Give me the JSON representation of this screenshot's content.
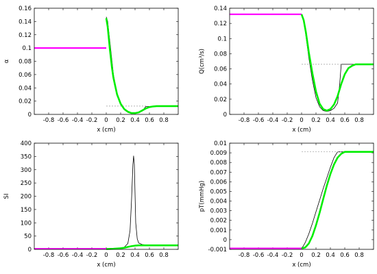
{
  "colors": {
    "magenta": "#ff00ff",
    "green": "#00ee00",
    "black": "#000000",
    "ref": "#999999"
  },
  "chart_data": [
    {
      "id": "alpha",
      "type": "line",
      "xlabel": "x (cm)",
      "ylabel": "α",
      "xlim": [
        -1.0,
        1.0
      ],
      "ylim": [
        0,
        0.16
      ],
      "xticks": [
        -0.8,
        -0.6,
        -0.4,
        -0.2,
        0,
        0.2,
        0.4,
        0.6,
        0.8
      ],
      "yticks": [
        0,
        0.02,
        0.04,
        0.06,
        0.08,
        0.1,
        0.12,
        0.14,
        0.16
      ],
      "xtick_labels": [
        "-0.8",
        "-0.6",
        "-0.4",
        "-0.2",
        "0",
        "0.2",
        "0.4",
        "0.6",
        "0.8"
      ],
      "ytick_labels": [
        "0",
        "0.02",
        "0.04",
        "0.06",
        "0.08",
        "0.1",
        "0.12",
        "0.14",
        "0.16"
      ],
      "series": [
        {
          "style": "magenta",
          "x": [
            -1.0,
            0.0
          ],
          "y": [
            0.1,
            0.1
          ]
        },
        {
          "style": "black",
          "x": [
            0.0,
            0.02,
            0.06,
            0.1,
            0.15,
            0.2,
            0.25,
            0.3,
            0.35,
            0.4,
            0.45,
            0.5,
            0.55,
            0.6,
            0.7,
            0.8,
            0.9,
            1.0
          ],
          "y": [
            0.147,
            0.14,
            0.1,
            0.06,
            0.032,
            0.016,
            0.007,
            0.003,
            0.002,
            0.002,
            0.003,
            0.005,
            0.012,
            0.012,
            0.012,
            0.012,
            0.012,
            0.012
          ]
        },
        {
          "style": "green",
          "x": [
            0.0,
            0.02,
            0.05,
            0.08,
            0.1,
            0.15,
            0.2,
            0.25,
            0.3,
            0.35,
            0.4,
            0.45,
            0.5,
            0.55,
            0.6,
            0.65,
            0.7,
            0.8,
            0.9,
            1.0
          ],
          "y": [
            0.145,
            0.132,
            0.098,
            0.07,
            0.055,
            0.03,
            0.016,
            0.008,
            0.004,
            0.002,
            0.002,
            0.003,
            0.006,
            0.009,
            0.011,
            0.012,
            0.0125,
            0.0125,
            0.0125,
            0.0125
          ]
        },
        {
          "style": "ref",
          "x": [
            0.0,
            0.56
          ],
          "y": [
            0.0125,
            0.0125
          ]
        }
      ]
    },
    {
      "id": "Q",
      "type": "line",
      "xlabel": "x (cm)",
      "ylabel": "Q(cm³/s)",
      "xlim": [
        -1.0,
        1.0
      ],
      "ylim": [
        0,
        0.14
      ],
      "xticks": [
        -0.8,
        -0.6,
        -0.4,
        -0.2,
        0,
        0.2,
        0.4,
        0.6,
        0.8
      ],
      "yticks": [
        0,
        0.02,
        0.04,
        0.06,
        0.08,
        0.1,
        0.12,
        0.14
      ],
      "xtick_labels": [
        "-0.8",
        "-0.6",
        "-0.4",
        "-0.2",
        "0",
        "0.2",
        "0.4",
        "0.6",
        "0.8"
      ],
      "ytick_labels": [
        "0",
        "0.02",
        "0.04",
        "0.06",
        "0.08",
        "0.1",
        "0.12",
        "0.14"
      ],
      "series": [
        {
          "style": "magenta",
          "x": [
            -1.0,
            0.0
          ],
          "y": [
            0.132,
            0.132
          ]
        },
        {
          "style": "black",
          "x": [
            0.0,
            0.02,
            0.05,
            0.1,
            0.15,
            0.2,
            0.25,
            0.3,
            0.35,
            0.4,
            0.45,
            0.5,
            0.53,
            0.55,
            0.6,
            0.8,
            1.0
          ],
          "y": [
            0.132,
            0.128,
            0.11,
            0.075,
            0.045,
            0.022,
            0.01,
            0.005,
            0.004,
            0.005,
            0.008,
            0.015,
            0.04,
            0.066,
            0.066,
            0.066,
            0.066
          ]
        },
        {
          "style": "green",
          "x": [
            0.0,
            0.03,
            0.06,
            0.1,
            0.15,
            0.2,
            0.25,
            0.3,
            0.35,
            0.4,
            0.45,
            0.5,
            0.55,
            0.6,
            0.65,
            0.7,
            0.75,
            0.8,
            0.9,
            1.0
          ],
          "y": [
            0.132,
            0.124,
            0.108,
            0.082,
            0.054,
            0.03,
            0.014,
            0.007,
            0.005,
            0.007,
            0.013,
            0.024,
            0.04,
            0.053,
            0.061,
            0.064,
            0.066,
            0.066,
            0.066,
            0.066
          ]
        },
        {
          "style": "ref",
          "x": [
            0.0,
            0.56
          ],
          "y": [
            0.066,
            0.066
          ]
        }
      ]
    },
    {
      "id": "SI",
      "type": "line",
      "xlabel": "x (cm)",
      "ylabel": "SI",
      "xlim": [
        -1.0,
        1.0
      ],
      "ylim": [
        0,
        400
      ],
      "xticks": [
        -0.8,
        -0.6,
        -0.4,
        -0.2,
        0,
        0.2,
        0.4,
        0.6,
        0.8
      ],
      "yticks": [
        0,
        50,
        100,
        150,
        200,
        250,
        300,
        350,
        400
      ],
      "xtick_labels": [
        "-0.8",
        "-0.6",
        "-0.4",
        "-0.2",
        "0",
        "0.2",
        "0.4",
        "0.6",
        "0.8"
      ],
      "ytick_labels": [
        "0",
        "50",
        "100",
        "150",
        "200",
        "250",
        "300",
        "350",
        "400"
      ],
      "series": [
        {
          "style": "magenta",
          "x": [
            -1.0,
            0.0
          ],
          "y": [
            2,
            2
          ]
        },
        {
          "style": "black",
          "x": [
            0.0,
            0.1,
            0.2,
            0.25,
            0.3,
            0.33,
            0.35,
            0.37,
            0.38,
            0.39,
            0.41,
            0.43,
            0.45,
            0.5,
            0.6,
            0.8,
            1.0
          ],
          "y": [
            1,
            2,
            4,
            8,
            22,
            70,
            180,
            320,
            352,
            320,
            100,
            40,
            24,
            18,
            15,
            14,
            14
          ]
        },
        {
          "style": "green",
          "x": [
            0.0,
            0.1,
            0.2,
            0.25,
            0.3,
            0.35,
            0.4,
            0.45,
            0.5,
            0.6,
            0.7,
            0.8,
            0.9,
            1.0
          ],
          "y": [
            1,
            2,
            4,
            6,
            9,
            12,
            14,
            15,
            15,
            15,
            15,
            15,
            15,
            15
          ]
        }
      ]
    },
    {
      "id": "pT",
      "type": "line",
      "xlabel": "x (cm)",
      "ylabel": "pT(mmHg)",
      "xlim": [
        -1.0,
        1.0
      ],
      "ylim": [
        -0.001,
        0.01
      ],
      "xticks": [
        -0.8,
        -0.6,
        -0.4,
        -0.2,
        0,
        0.2,
        0.4,
        0.6,
        0.8
      ],
      "yticks": [
        -0.001,
        0,
        0.001,
        0.002,
        0.003,
        0.004,
        0.005,
        0.006,
        0.007,
        0.008,
        0.009,
        0.01
      ],
      "xtick_labels": [
        "-0.8",
        "-0.6",
        "-0.4",
        "-0.2",
        "0",
        "0.2",
        "0.4",
        "0.6",
        "0.8"
      ],
      "ytick_labels": [
        "-0.001",
        "0",
        "0.001",
        "0.002",
        "0.003",
        "0.004",
        "0.005",
        "0.006",
        "0.007",
        "0.008",
        "0.009",
        "0.01"
      ],
      "series": [
        {
          "style": "magenta",
          "x": [
            -1.0,
            0.0
          ],
          "y": [
            -0.0009,
            -0.0009
          ]
        },
        {
          "style": "black",
          "x": [
            0.0,
            0.02,
            0.05,
            0.1,
            0.15,
            0.2,
            0.25,
            0.3,
            0.35,
            0.4,
            0.45,
            0.5,
            0.55,
            0.6,
            0.8,
            1.0
          ],
          "y": [
            -0.0009,
            -0.0007,
            -0.0003,
            0.0006,
            0.0017,
            0.0029,
            0.0041,
            0.0053,
            0.0064,
            0.0075,
            0.0085,
            0.0091,
            0.0091,
            0.0091,
            0.0091,
            0.0091
          ]
        },
        {
          "style": "green",
          "x": [
            0.0,
            0.05,
            0.1,
            0.15,
            0.2,
            0.25,
            0.3,
            0.35,
            0.4,
            0.45,
            0.5,
            0.55,
            0.6,
            0.65,
            0.7,
            0.8,
            0.9,
            1.0
          ],
          "y": [
            -0.0009,
            -0.0008,
            -0.0004,
            0.0004,
            0.0015,
            0.0028,
            0.0042,
            0.0056,
            0.0068,
            0.0078,
            0.0085,
            0.0089,
            0.0091,
            0.0091,
            0.0091,
            0.0091,
            0.0091,
            0.0091
          ]
        },
        {
          "style": "ref",
          "x": [
            0.0,
            0.56
          ],
          "y": [
            0.0091,
            0.0091
          ]
        }
      ]
    }
  ]
}
